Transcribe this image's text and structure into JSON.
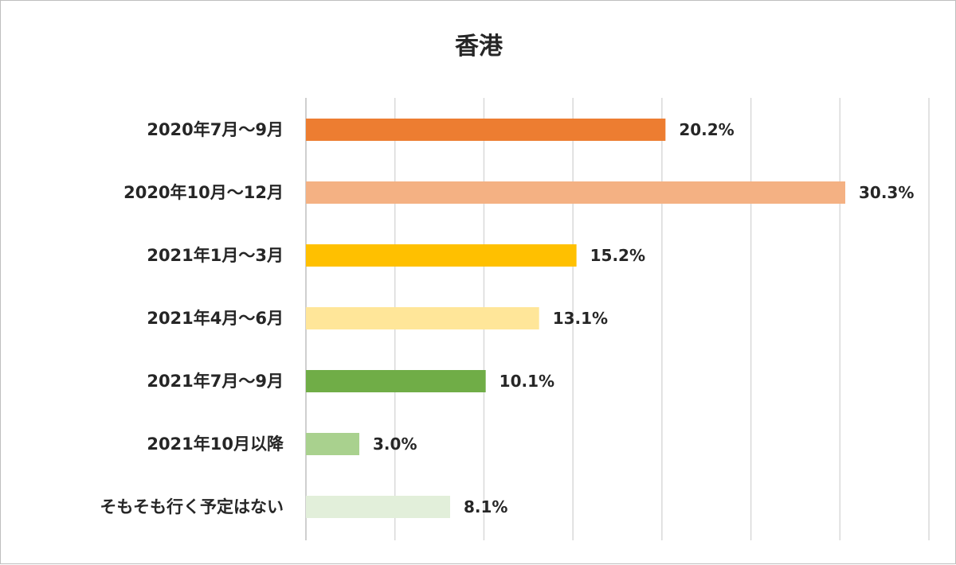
{
  "chart_data": {
    "type": "bar",
    "orientation": "horizontal",
    "title": "香港",
    "categories": [
      "2020年7月～9月",
      "2020年10月～12月",
      "2021年1月～3月",
      "2021年4月～6月",
      "2021年7月～9月",
      "2021年10月以降",
      "そもそも行く予定はない"
    ],
    "values": [
      20.2,
      30.3,
      15.2,
      13.1,
      10.1,
      3.0,
      8.1
    ],
    "value_labels": [
      "20.2%",
      "30.3%",
      "15.2%",
      "13.1%",
      "10.1%",
      "3.0%",
      "8.1%"
    ],
    "colors": [
      "#ed7d31",
      "#f4b183",
      "#ffc000",
      "#ffe699",
      "#70ad47",
      "#a9d18e",
      "#e2efda"
    ],
    "xlim": [
      0,
      35
    ],
    "grid": true,
    "legend": false
  }
}
